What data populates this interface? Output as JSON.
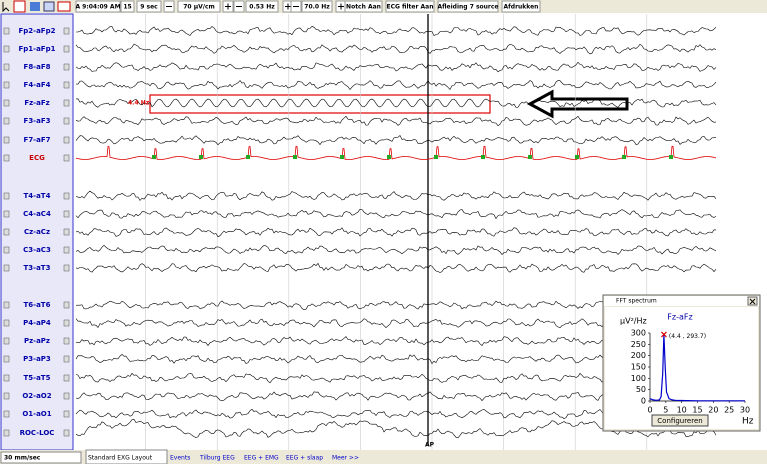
{
  "toolbar": {
    "time": "A 9:04:09 AM",
    "page": "15",
    "window": "9 sec",
    "sensitivity": "70 µV/cm",
    "low_filter": "0.53 Hz",
    "high_filter": "70.0 Hz",
    "buttons": [
      "Notch Aan",
      "ECG filter Aan",
      "Afleiding 7 source",
      "Afdrukken"
    ]
  },
  "channels": [
    "Fp2-aFp2",
    "Fp1-aFp1",
    "F8-aF8",
    "F4-aF4",
    "Fz-aFz",
    "F3-aF3",
    "F7-aF7",
    "ECG",
    "T4-aT4",
    "C4-aC4",
    "Cz-aCz",
    "C3-aC3",
    "T3-aT3",
    "T6-aT6",
    "P4-aP4",
    "Pz-aPz",
    "P3-aP3",
    "T5-aT5",
    "O2-aO2",
    "O1-aO1",
    "ROC-LOC"
  ],
  "annotation": {
    "label": "4.4 Hz"
  },
  "event_marker": "AP",
  "speed": "30 mm/sec",
  "tabs": [
    "Standard EXG Layout",
    "Events",
    "Tilburg EEG",
    "EEG + EMG",
    "EEG + slaap",
    "Meer >>"
  ],
  "fft_window": {
    "title": "FFT spectrum",
    "button": "Configureren"
  },
  "chart_data": {
    "type": "line",
    "title": "Fz-aFz",
    "y_label": "µV²/Hz",
    "x_label": "Hz",
    "x": [
      0,
      1,
      2,
      3,
      3.5,
      4,
      4.4,
      4.8,
      5.2,
      6,
      7,
      8,
      10,
      15,
      20,
      25,
      30
    ],
    "values": [
      10,
      5,
      3,
      5,
      20,
      120,
      293.7,
      150,
      40,
      10,
      5,
      3,
      2,
      1,
      1,
      1,
      1
    ],
    "color": "#0000cc",
    "xlim": [
      0,
      30
    ],
    "xticks": [
      0,
      5,
      10,
      15,
      20,
      25,
      30
    ],
    "ylim": [
      0,
      300
    ],
    "yticks": [
      0,
      50,
      100,
      150,
      200,
      250,
      300
    ],
    "annotations": [
      {
        "text": "(4.4 , 293.7)",
        "x": 4.4,
        "y": 293.7
      }
    ]
  }
}
